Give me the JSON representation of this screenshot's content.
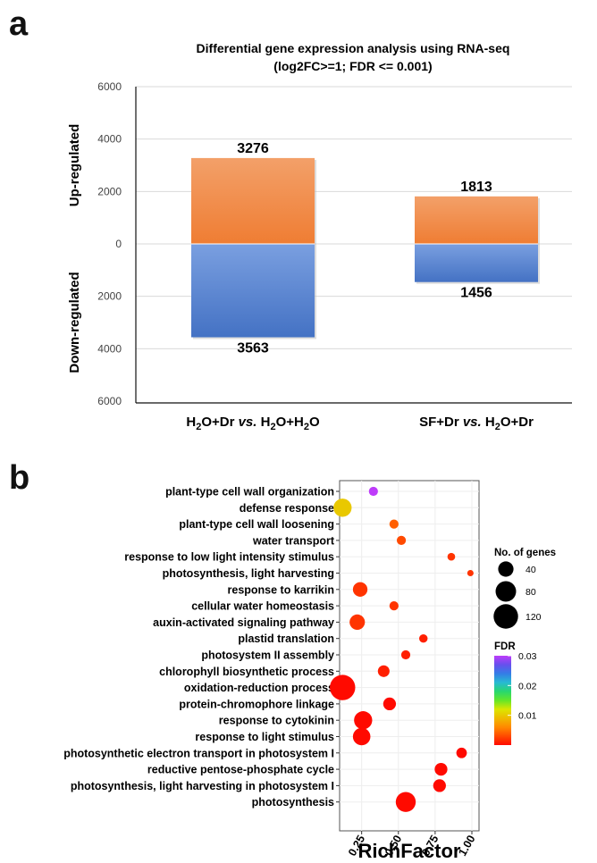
{
  "panel_a": {
    "letter": "a",
    "chart_data": {
      "type": "bar",
      "title": "Differential gene expression analysis using RNA-seq",
      "subtitle": "(log2FC>=1; FDR <= 0.001)",
      "categories": [
        "H2O+Dr vs. H2O+H2O",
        "SF+Dr vs. H2O+Dr"
      ],
      "category_labels": [
        {
          "a": "H",
          "sub1": "2",
          "b": "O+Dr ",
          "vs": "vs.",
          "c": " H",
          "sub2": "2",
          "d": "O+H",
          "sub3": "2",
          "e": "O"
        },
        {
          "a": "SF+Dr ",
          "vs": "vs.",
          "b": " H",
          "sub1": "2",
          "c": "O+Dr"
        }
      ],
      "series": [
        {
          "name": "Up-regulated",
          "values": [
            3276,
            1813
          ],
          "color": "#ef7d33"
        },
        {
          "name": "Down-regulated",
          "values": [
            3563,
            1456
          ],
          "color": "#4472c4"
        }
      ],
      "y_ticks_up": [
        "2000",
        "4000",
        "6000"
      ],
      "y_ticks_down": [
        "2000",
        "4000",
        "6000"
      ],
      "y_zero": "0",
      "ylim": [
        -6000,
        6000
      ],
      "ylabel_up": "Up-regulated",
      "ylabel_down": "Down-regulated",
      "grid": true
    }
  },
  "panel_b": {
    "letter": "b",
    "chart_data": {
      "type": "scatter",
      "xlabel": "RichFactor",
      "x_ticks": [
        0.25,
        0.5,
        0.75,
        1.0
      ],
      "x_tick_labels": [
        "0.25",
        "0.50",
        "0.75",
        "1.00"
      ],
      "xlim": [
        0.1,
        1.0
      ],
      "categories": [
        "plant-type cell wall organization",
        "defense response",
        "plant-type cell wall loosening",
        "water transport",
        "response to low light intensity stimulus",
        "photosynthesis, light harvesting",
        "response to karrikin",
        "cellular water homeostasis",
        "auxin-activated signaling pathway",
        "plastid translation",
        "photosystem II assembly",
        "chlorophyll biosynthetic process",
        "oxidation-reduction process",
        "protein-chromophore linkage",
        "response to cytokinin",
        "response to light stimulus",
        "photosynthetic electron transport in photosystem I",
        "reductive pentose-phosphate cycle",
        "photosynthesis, light harvesting in photosystem I",
        "photosynthesis"
      ],
      "points": [
        {
          "x": 0.33,
          "genes": 10,
          "fdr": 0.03
        },
        {
          "x": 0.12,
          "genes": 60,
          "fdr": 0.01
        },
        {
          "x": 0.47,
          "genes": 10,
          "fdr": 0.004
        },
        {
          "x": 0.52,
          "genes": 10,
          "fdr": 0.003
        },
        {
          "x": 0.86,
          "genes": 6,
          "fdr": 0.002
        },
        {
          "x": 0.99,
          "genes": 3,
          "fdr": 0.002
        },
        {
          "x": 0.24,
          "genes": 35,
          "fdr": 0.002
        },
        {
          "x": 0.47,
          "genes": 10,
          "fdr": 0.002
        },
        {
          "x": 0.22,
          "genes": 40,
          "fdr": 0.002
        },
        {
          "x": 0.67,
          "genes": 8,
          "fdr": 0.001
        },
        {
          "x": 0.55,
          "genes": 10,
          "fdr": 0.001
        },
        {
          "x": 0.4,
          "genes": 20,
          "fdr": 0.001
        },
        {
          "x": 0.12,
          "genes": 130,
          "fdr": 0.0
        },
        {
          "x": 0.44,
          "genes": 25,
          "fdr": 0.0
        },
        {
          "x": 0.26,
          "genes": 60,
          "fdr": 0.0
        },
        {
          "x": 0.25,
          "genes": 55,
          "fdr": 0.0
        },
        {
          "x": 0.93,
          "genes": 15,
          "fdr": 0.0
        },
        {
          "x": 0.79,
          "genes": 25,
          "fdr": 0.0
        },
        {
          "x": 0.78,
          "genes": 25,
          "fdr": 0.0
        },
        {
          "x": 0.55,
          "genes": 75,
          "fdr": 0.0
        }
      ],
      "size_legend": {
        "title": "No. of genes",
        "values": [
          40,
          80,
          120
        ],
        "labels": [
          "40",
          "80",
          "120"
        ]
      },
      "color_legend": {
        "title": "FDR",
        "ticks": [
          0.03,
          0.02,
          0.01
        ],
        "labels": [
          "0.03",
          "0.02",
          "0.01"
        ],
        "range": [
          0.0,
          0.03
        ]
      }
    }
  }
}
